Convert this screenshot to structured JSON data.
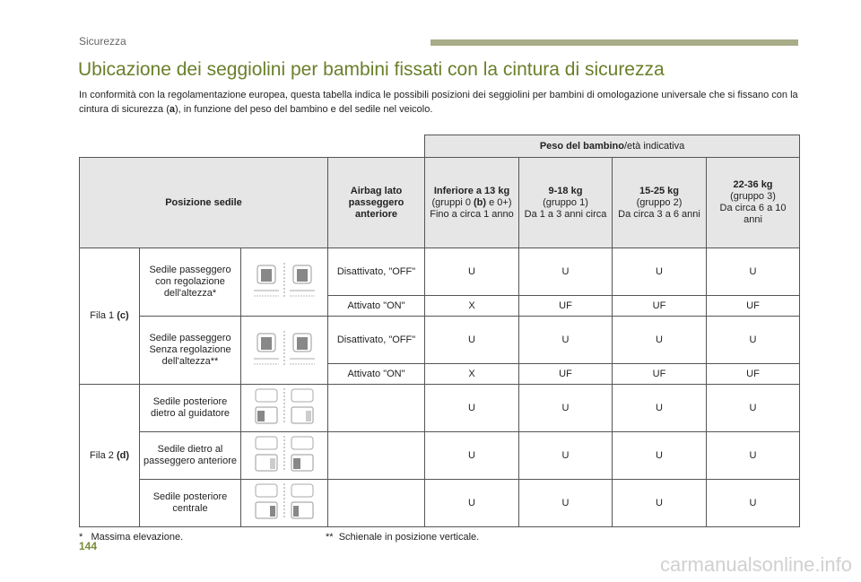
{
  "header": {
    "section": "Sicurezza"
  },
  "title": "Ubicazione dei seggiolini per bambini fissati con la cintura di sicurezza",
  "intro": {
    "part1": "In conformità con la regolamentazione europea, questa tabella indica le possibili posizioni dei seggiolini per bambini di omologazione universale che si fissano con la cintura di sicurezza (",
    "ref": "a",
    "part2": "), in funzione del peso del bambino e del sedile nel veicolo."
  },
  "table": {
    "weight_header_bold": "Peso del bambino",
    "weight_header_rest": "/età indicativa",
    "col_seat_position": "Posizione sedile",
    "col_airbag": "Airbag lato passeggero anteriore",
    "groups": [
      {
        "kg": "Inferiore a 13 kg",
        "group_pre": "(gruppi 0 ",
        "group_ref": "(b)",
        "group_post": " e 0+)",
        "age": "Fino a circa 1 anno"
      },
      {
        "kg": "9-18 kg",
        "group_pre": "(gruppo 1)",
        "group_ref": "",
        "group_post": "",
        "age": "Da 1 a 3 anni circa"
      },
      {
        "kg": "15-25 kg",
        "group_pre": "(gruppo 2)",
        "group_ref": "",
        "group_post": "",
        "age": "Da circa 3 a 6 anni"
      },
      {
        "kg": "22-36 kg",
        "group_pre": "(gruppo 3)",
        "group_ref": "",
        "group_post": "",
        "age": "Da circa 6 a 10 anni"
      }
    ],
    "row1_label": "Fila 1",
    "row1_ref": "(c)",
    "row2_label": "Fila 2",
    "row2_ref": "(d)",
    "seats": [
      {
        "label": "Sedile passeggero con regolazione dell'altezza*",
        "airbag_off": "Disattivato, \"OFF\"",
        "off_values": [
          "U",
          "U",
          "U",
          "U"
        ],
        "airbag_on": "Attivato \"ON\"",
        "on_values": [
          "X",
          "UF",
          "UF",
          "UF"
        ],
        "icon": "front-seats-icon"
      },
      {
        "label": "Sedile passeggero Senza regolazione dell'altezza**",
        "airbag_off": "Disattivato, \"OFF\"",
        "off_values": [
          "U",
          "U",
          "U",
          "U"
        ],
        "airbag_on": "Attivato \"ON\"",
        "on_values": [
          "X",
          "UF",
          "UF",
          "UF"
        ],
        "icon": "front-seats-icon"
      },
      {
        "label": "Sedile posteriore dietro al guidatore",
        "values": [
          "U",
          "U",
          "U",
          "U"
        ],
        "icon": "rear-left-seat-icon"
      },
      {
        "label": "Sedile dietro al passeggero anteriore",
        "values": [
          "U",
          "U",
          "U",
          "U"
        ],
        "icon": "rear-right-seat-icon"
      },
      {
        "label": "Sedile posteriore centrale",
        "values": [
          "U",
          "U",
          "U",
          "U"
        ],
        "icon": "rear-center-seat-icon"
      }
    ]
  },
  "footnotes": {
    "f1_mark": "*",
    "f1_text": "Massima elevazione.",
    "f2_mark": "**",
    "f2_text": "Schienale in posizione verticale."
  },
  "page_number": "144",
  "watermark": "carmanualsonline.info"
}
